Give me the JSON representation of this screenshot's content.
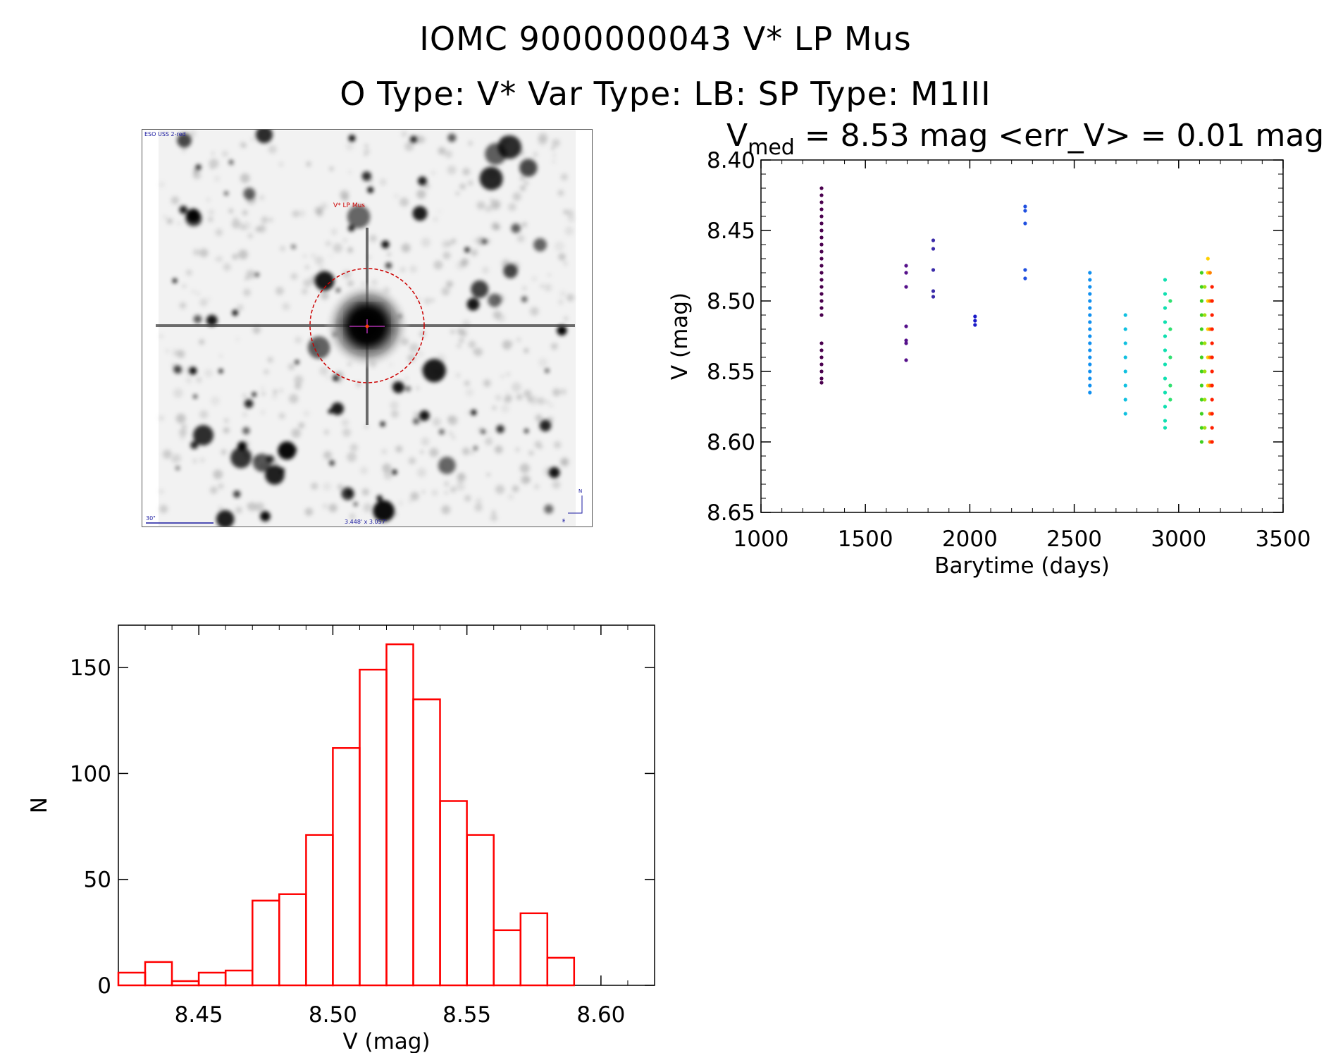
{
  "header": {
    "title_line1": "IOMC 9000000043    V* LP Mus",
    "title_line2": "O Type: V*   Var Type: LB:   SP Type: M1III"
  },
  "sky_image": {
    "survey_label": "ESO USS 2-red",
    "target_label": "V* LP Mus",
    "scale_label": "30\"",
    "size_label": "3.448' x 3.057'",
    "north_label": "N",
    "east_label": "E"
  },
  "colors": {
    "histogram_bar": "#ff0000",
    "circle": "#cc0000",
    "compass": "#1a1aa0"
  },
  "chart_data": [
    {
      "type": "scatter",
      "name": "light-curve",
      "title": "V_med = 8.53 mag <err_V> = 0.01 mag",
      "title_parts": {
        "v": "V",
        "sub": "med",
        "rest": " = 8.53 mag <err_V> = 0.01 mag"
      },
      "xlabel": "Barytime (days)",
      "ylabel": "V (mag)",
      "xlim": [
        1000,
        3500
      ],
      "ylim": [
        8.65,
        8.4
      ],
      "y_inverted": true,
      "xticks": [
        1000,
        1500,
        2000,
        2500,
        3000,
        3500
      ],
      "yticks": [
        8.4,
        8.45,
        8.5,
        8.55,
        8.6,
        8.65
      ],
      "ytick_labels": [
        "8.40",
        "8.45",
        "8.50",
        "8.55",
        "8.60",
        "8.65"
      ],
      "groups": [
        {
          "x": 1290,
          "color": "#4a004e",
          "v": [
            8.42,
            8.425,
            8.43,
            8.435,
            8.44,
            8.445,
            8.45,
            8.455,
            8.46,
            8.465,
            8.47,
            8.475,
            8.48,
            8.485,
            8.49,
            8.495,
            8.5,
            8.505,
            8.51,
            8.53,
            8.535,
            8.54,
            8.545,
            8.55,
            8.555,
            8.558
          ]
        },
        {
          "x": 1695,
          "color": "#55108a",
          "v": [
            8.475,
            8.48,
            8.49,
            8.518,
            8.528,
            8.53,
            8.542
          ]
        },
        {
          "x": 1825,
          "color": "#3a2aa8",
          "v": [
            8.457,
            8.463,
            8.478,
            8.493,
            8.497
          ]
        },
        {
          "x": 2025,
          "color": "#1a1ac8",
          "v": [
            8.511,
            8.514,
            8.517
          ]
        },
        {
          "x": 2265,
          "color": "#2050e0",
          "v": [
            8.433,
            8.436,
            8.445,
            8.478,
            8.484
          ]
        },
        {
          "x": 2575,
          "color": "#1090f0",
          "v": [
            8.48,
            8.485,
            8.49,
            8.495,
            8.5,
            8.505,
            8.51,
            8.515,
            8.52,
            8.525,
            8.53,
            8.535,
            8.54,
            8.545,
            8.55,
            8.555,
            8.56,
            8.565
          ]
        },
        {
          "x": 2745,
          "color": "#10c0e0",
          "v": [
            8.51,
            8.52,
            8.53,
            8.54,
            8.55,
            8.56,
            8.57,
            8.58
          ]
        },
        {
          "x": 2935,
          "color": "#10e0b0",
          "v": [
            8.485,
            8.495,
            8.505,
            8.515,
            8.525,
            8.535,
            8.545,
            8.555,
            8.565,
            8.575,
            8.585,
            8.59
          ]
        },
        {
          "x": 2960,
          "color": "#30e070",
          "v": [
            8.5,
            8.52,
            8.54,
            8.56,
            8.57
          ]
        },
        {
          "x": 3110,
          "color": "#40d020",
          "v": [
            8.48,
            8.49,
            8.5,
            8.51,
            8.52,
            8.53,
            8.54,
            8.55,
            8.56,
            8.57,
            8.58,
            8.59,
            8.6
          ]
        },
        {
          "x": 3125,
          "color": "#a0e010",
          "v": [
            8.49,
            8.51,
            8.53,
            8.55,
            8.57,
            8.59
          ]
        },
        {
          "x": 3140,
          "color": "#ffd000",
          "v": [
            8.47,
            8.48,
            8.5,
            8.52,
            8.54,
            8.56
          ]
        },
        {
          "x": 3150,
          "color": "#ff8000",
          "v": [
            8.48,
            8.5,
            8.52,
            8.54,
            8.56,
            8.58,
            8.6
          ]
        },
        {
          "x": 3160,
          "color": "#ff2000",
          "v": [
            8.49,
            8.5,
            8.51,
            8.52,
            8.53,
            8.54,
            8.55,
            8.56,
            8.57,
            8.58,
            8.59,
            8.6
          ]
        }
      ]
    },
    {
      "type": "bar",
      "name": "histogram",
      "xlabel": "V (mag)",
      "ylabel": "N",
      "xlim": [
        8.42,
        8.62
      ],
      "ylim": [
        0,
        170
      ],
      "xticks": [
        8.45,
        8.5,
        8.55,
        8.6
      ],
      "xtick_labels": [
        "8.45",
        "8.50",
        "8.55",
        "8.60"
      ],
      "yticks": [
        0,
        50,
        100,
        150
      ],
      "bin_start": 8.42,
      "bin_width": 0.01,
      "values": [
        6,
        11,
        2,
        6,
        7,
        40,
        43,
        71,
        112,
        149,
        161,
        135,
        87,
        71,
        26,
        34,
        13
      ]
    }
  ]
}
